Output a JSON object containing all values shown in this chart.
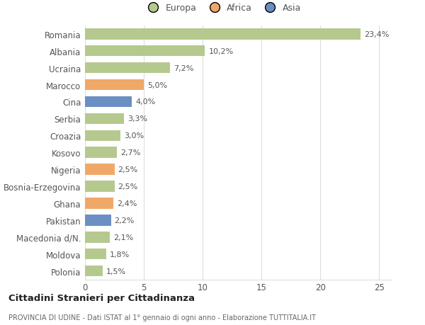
{
  "categories": [
    "Romania",
    "Albania",
    "Ucraina",
    "Marocco",
    "Cina",
    "Serbia",
    "Croazia",
    "Kosovo",
    "Nigeria",
    "Bosnia-Erzegovina",
    "Ghana",
    "Pakistan",
    "Macedonia d/N.",
    "Moldova",
    "Polonia"
  ],
  "values": [
    23.4,
    10.2,
    7.2,
    5.0,
    4.0,
    3.3,
    3.0,
    2.7,
    2.5,
    2.5,
    2.4,
    2.2,
    2.1,
    1.8,
    1.5
  ],
  "labels": [
    "23,4%",
    "10,2%",
    "7,2%",
    "5,0%",
    "4,0%",
    "3,3%",
    "3,0%",
    "2,7%",
    "2,5%",
    "2,5%",
    "2,4%",
    "2,2%",
    "2,1%",
    "1,8%",
    "1,5%"
  ],
  "continent": [
    "Europa",
    "Europa",
    "Europa",
    "Africa",
    "Asia",
    "Europa",
    "Europa",
    "Europa",
    "Africa",
    "Europa",
    "Africa",
    "Asia",
    "Europa",
    "Europa",
    "Europa"
  ],
  "colors": {
    "Europa": "#b5c98e",
    "Africa": "#f0a868",
    "Asia": "#6b8fc2"
  },
  "legend": [
    "Europa",
    "Africa",
    "Asia"
  ],
  "legend_colors": [
    "#b5c98e",
    "#f0a868",
    "#6b8fc2"
  ],
  "title": "Cittadini Stranieri per Cittadinanza",
  "subtitle": "PROVINCIA DI UDINE - Dati ISTAT al 1° gennaio di ogni anno - Elaborazione TUTTITALIA.IT",
  "xlim": [
    0,
    26
  ],
  "xticks": [
    0,
    5,
    10,
    15,
    20,
    25
  ],
  "background_color": "#ffffff",
  "grid_color": "#dddddd"
}
